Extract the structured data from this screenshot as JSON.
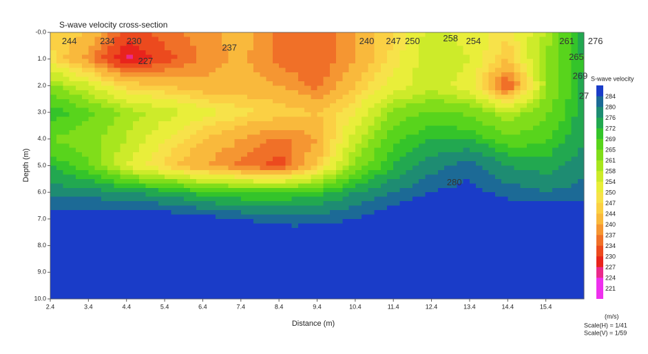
{
  "chart_data": {
    "type": "contour",
    "title": "S-wave velocity cross-section",
    "xlabel": "Distance (m)",
    "ylabel": "Depth (m)",
    "xlim": [
      2.4,
      16.4
    ],
    "ylim": [
      0,
      10
    ],
    "xticks": [
      2.4,
      3.4,
      4.4,
      5.4,
      6.4,
      7.4,
      8.4,
      9.4,
      10.4,
      11.4,
      12.4,
      13.4,
      14.4,
      15.4
    ],
    "yticks": [
      {
        "value": 0,
        "label": "-0.0"
      },
      {
        "value": 1,
        "label": "1.0"
      },
      {
        "value": 2,
        "label": "2.0"
      },
      {
        "value": 3,
        "label": "3.0"
      },
      {
        "value": 4,
        "label": "4.0"
      },
      {
        "value": 5,
        "label": "5.0"
      },
      {
        "value": 6,
        "label": "6.0"
      },
      {
        "value": 7,
        "label": "7.0"
      },
      {
        "value": 8,
        "label": "8.0"
      },
      {
        "value": 9,
        "label": "9.0"
      },
      {
        "value": 10,
        "label": "10.0"
      }
    ],
    "x": [
      2.4,
      3.4,
      4.4,
      5.4,
      6.4,
      7.4,
      8.4,
      9.4,
      10.4,
      11.4,
      12.4,
      13.4,
      14.4,
      15.4,
      16.4
    ],
    "y": [
      0,
      1,
      2,
      3,
      4,
      5,
      6,
      7,
      8,
      9,
      10
    ],
    "z": [
      [
        247,
        244,
        232,
        236,
        238,
        242,
        236,
        234,
        240,
        247,
        256,
        252,
        248,
        258,
        276
      ],
      [
        248,
        238,
        226,
        232,
        238,
        241,
        236,
        234,
        240,
        248,
        258,
        254,
        244,
        262,
        272
      ],
      [
        262,
        255,
        246,
        244,
        241,
        242,
        240,
        236,
        244,
        252,
        256,
        252,
        232,
        260,
        274
      ],
      [
        272,
        266,
        260,
        256,
        252,
        248,
        246,
        244,
        250,
        262,
        266,
        264,
        258,
        264,
        274
      ],
      [
        265,
        262,
        258,
        250,
        244,
        240,
        236,
        240,
        256,
        268,
        272,
        272,
        266,
        268,
        276
      ],
      [
        272,
        266,
        254,
        246,
        240,
        236,
        232,
        244,
        262,
        272,
        278,
        282,
        276,
        274,
        278
      ],
      [
        278,
        278,
        276,
        274,
        270,
        268,
        268,
        270,
        276,
        280,
        284,
        286,
        282,
        280,
        282
      ],
      [
        288,
        288,
        288,
        288,
        286,
        284,
        282,
        282,
        284,
        288,
        290,
        290,
        290,
        290,
        290
      ],
      [
        290,
        290,
        290,
        290,
        290,
        290,
        290,
        290,
        290,
        290,
        290,
        290,
        290,
        290,
        290
      ],
      [
        290,
        290,
        290,
        290,
        290,
        290,
        290,
        290,
        290,
        290,
        290,
        290,
        290,
        290,
        290
      ],
      [
        290,
        290,
        290,
        290,
        290,
        290,
        290,
        290,
        290,
        290,
        290,
        290,
        290,
        290,
        290
      ]
    ],
    "contour_labels": [
      {
        "value": 244,
        "x": 2.9,
        "y": 0.35
      },
      {
        "value": 234,
        "x": 3.9,
        "y": 0.35
      },
      {
        "value": 230,
        "x": 4.6,
        "y": 0.35
      },
      {
        "value": 227,
        "x": 4.9,
        "y": 1.1
      },
      {
        "value": 237,
        "x": 7.1,
        "y": 0.6
      },
      {
        "value": 240,
        "x": 10.7,
        "y": 0.35
      },
      {
        "value": 247,
        "x": 11.4,
        "y": 0.35
      },
      {
        "value": 250,
        "x": 11.9,
        "y": 0.35
      },
      {
        "value": 258,
        "x": 12.9,
        "y": 0.25
      },
      {
        "value": 254,
        "x": 13.5,
        "y": 0.35
      },
      {
        "value": 261,
        "x": 15.95,
        "y": 0.35
      },
      {
        "value": 276,
        "x": 16.7,
        "y": 0.35
      },
      {
        "value": 265,
        "x": 16.2,
        "y": 0.95
      },
      {
        "value": 269,
        "x": 16.3,
        "y": 1.65
      },
      {
        "value": 27,
        "x": 16.4,
        "y": 2.4
      },
      {
        "value": 280,
        "x": 13.0,
        "y": 5.65
      }
    ],
    "colorbar": {
      "title": "S-wave velocity",
      "unit": "(m/s)",
      "levels": [
        221,
        224,
        227,
        230,
        234,
        237,
        240,
        244,
        247,
        250,
        254,
        258,
        261,
        265,
        269,
        272,
        276,
        280,
        284
      ],
      "colors": [
        "#ee30ee",
        "#ea2a8a",
        "#e8241c",
        "#ec4a1e",
        "#f07028",
        "#f59632",
        "#f9b93c",
        "#fbd044",
        "#f7e24a",
        "#e9ee3a",
        "#cdeb2a",
        "#a8e61e",
        "#80dd1a",
        "#58d41c",
        "#34c42a",
        "#22a850",
        "#1e8c72",
        "#1c6a96",
        "#1a3cc8"
      ]
    },
    "scale_h": "Scale(H) = 1/41",
    "scale_v": "Scale(V) = 1/59"
  }
}
